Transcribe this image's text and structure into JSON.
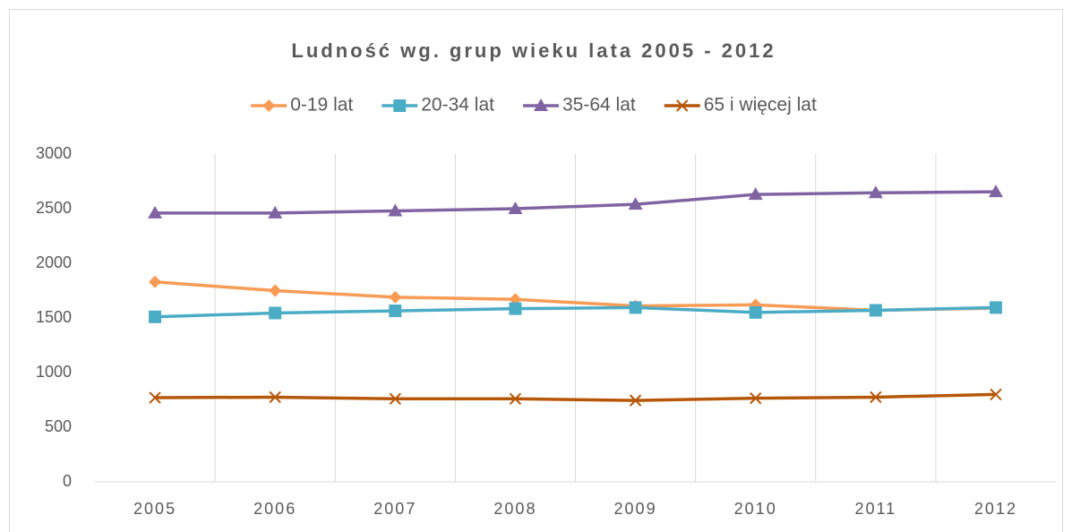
{
  "chart_data": {
    "type": "line",
    "title": "Ludność wg. grup wieku lata 2005 - 2012",
    "categories": [
      "2005",
      "2006",
      "2007",
      "2008",
      "2009",
      "2010",
      "2011",
      "2012"
    ],
    "series": [
      {
        "name": "0-19 lat",
        "color": "#f79b55",
        "marker": "diamond",
        "values": [
          1830,
          1750,
          1690,
          1670,
          1610,
          1620,
          1570,
          1590
        ]
      },
      {
        "name": "20-34 lat",
        "color": "#4bacc6",
        "marker": "square",
        "values": [
          1510,
          1545,
          1565,
          1585,
          1595,
          1550,
          1570,
          1595
        ]
      },
      {
        "name": "35-64 lat",
        "color": "#8064a2",
        "marker": "triangle",
        "values": [
          2460,
          2460,
          2480,
          2500,
          2540,
          2630,
          2645,
          2655
        ]
      },
      {
        "name": "65 i więcej lat",
        "color": "#b65708",
        "marker": "x",
        "values": [
          770,
          775,
          760,
          760,
          745,
          765,
          775,
          800
        ]
      }
    ],
    "ylim": [
      0,
      3000
    ],
    "yticks": [
      0,
      500,
      1000,
      1500,
      2000,
      2500,
      3000
    ],
    "grid": {
      "x": true,
      "y": false
    },
    "legend": "top"
  }
}
